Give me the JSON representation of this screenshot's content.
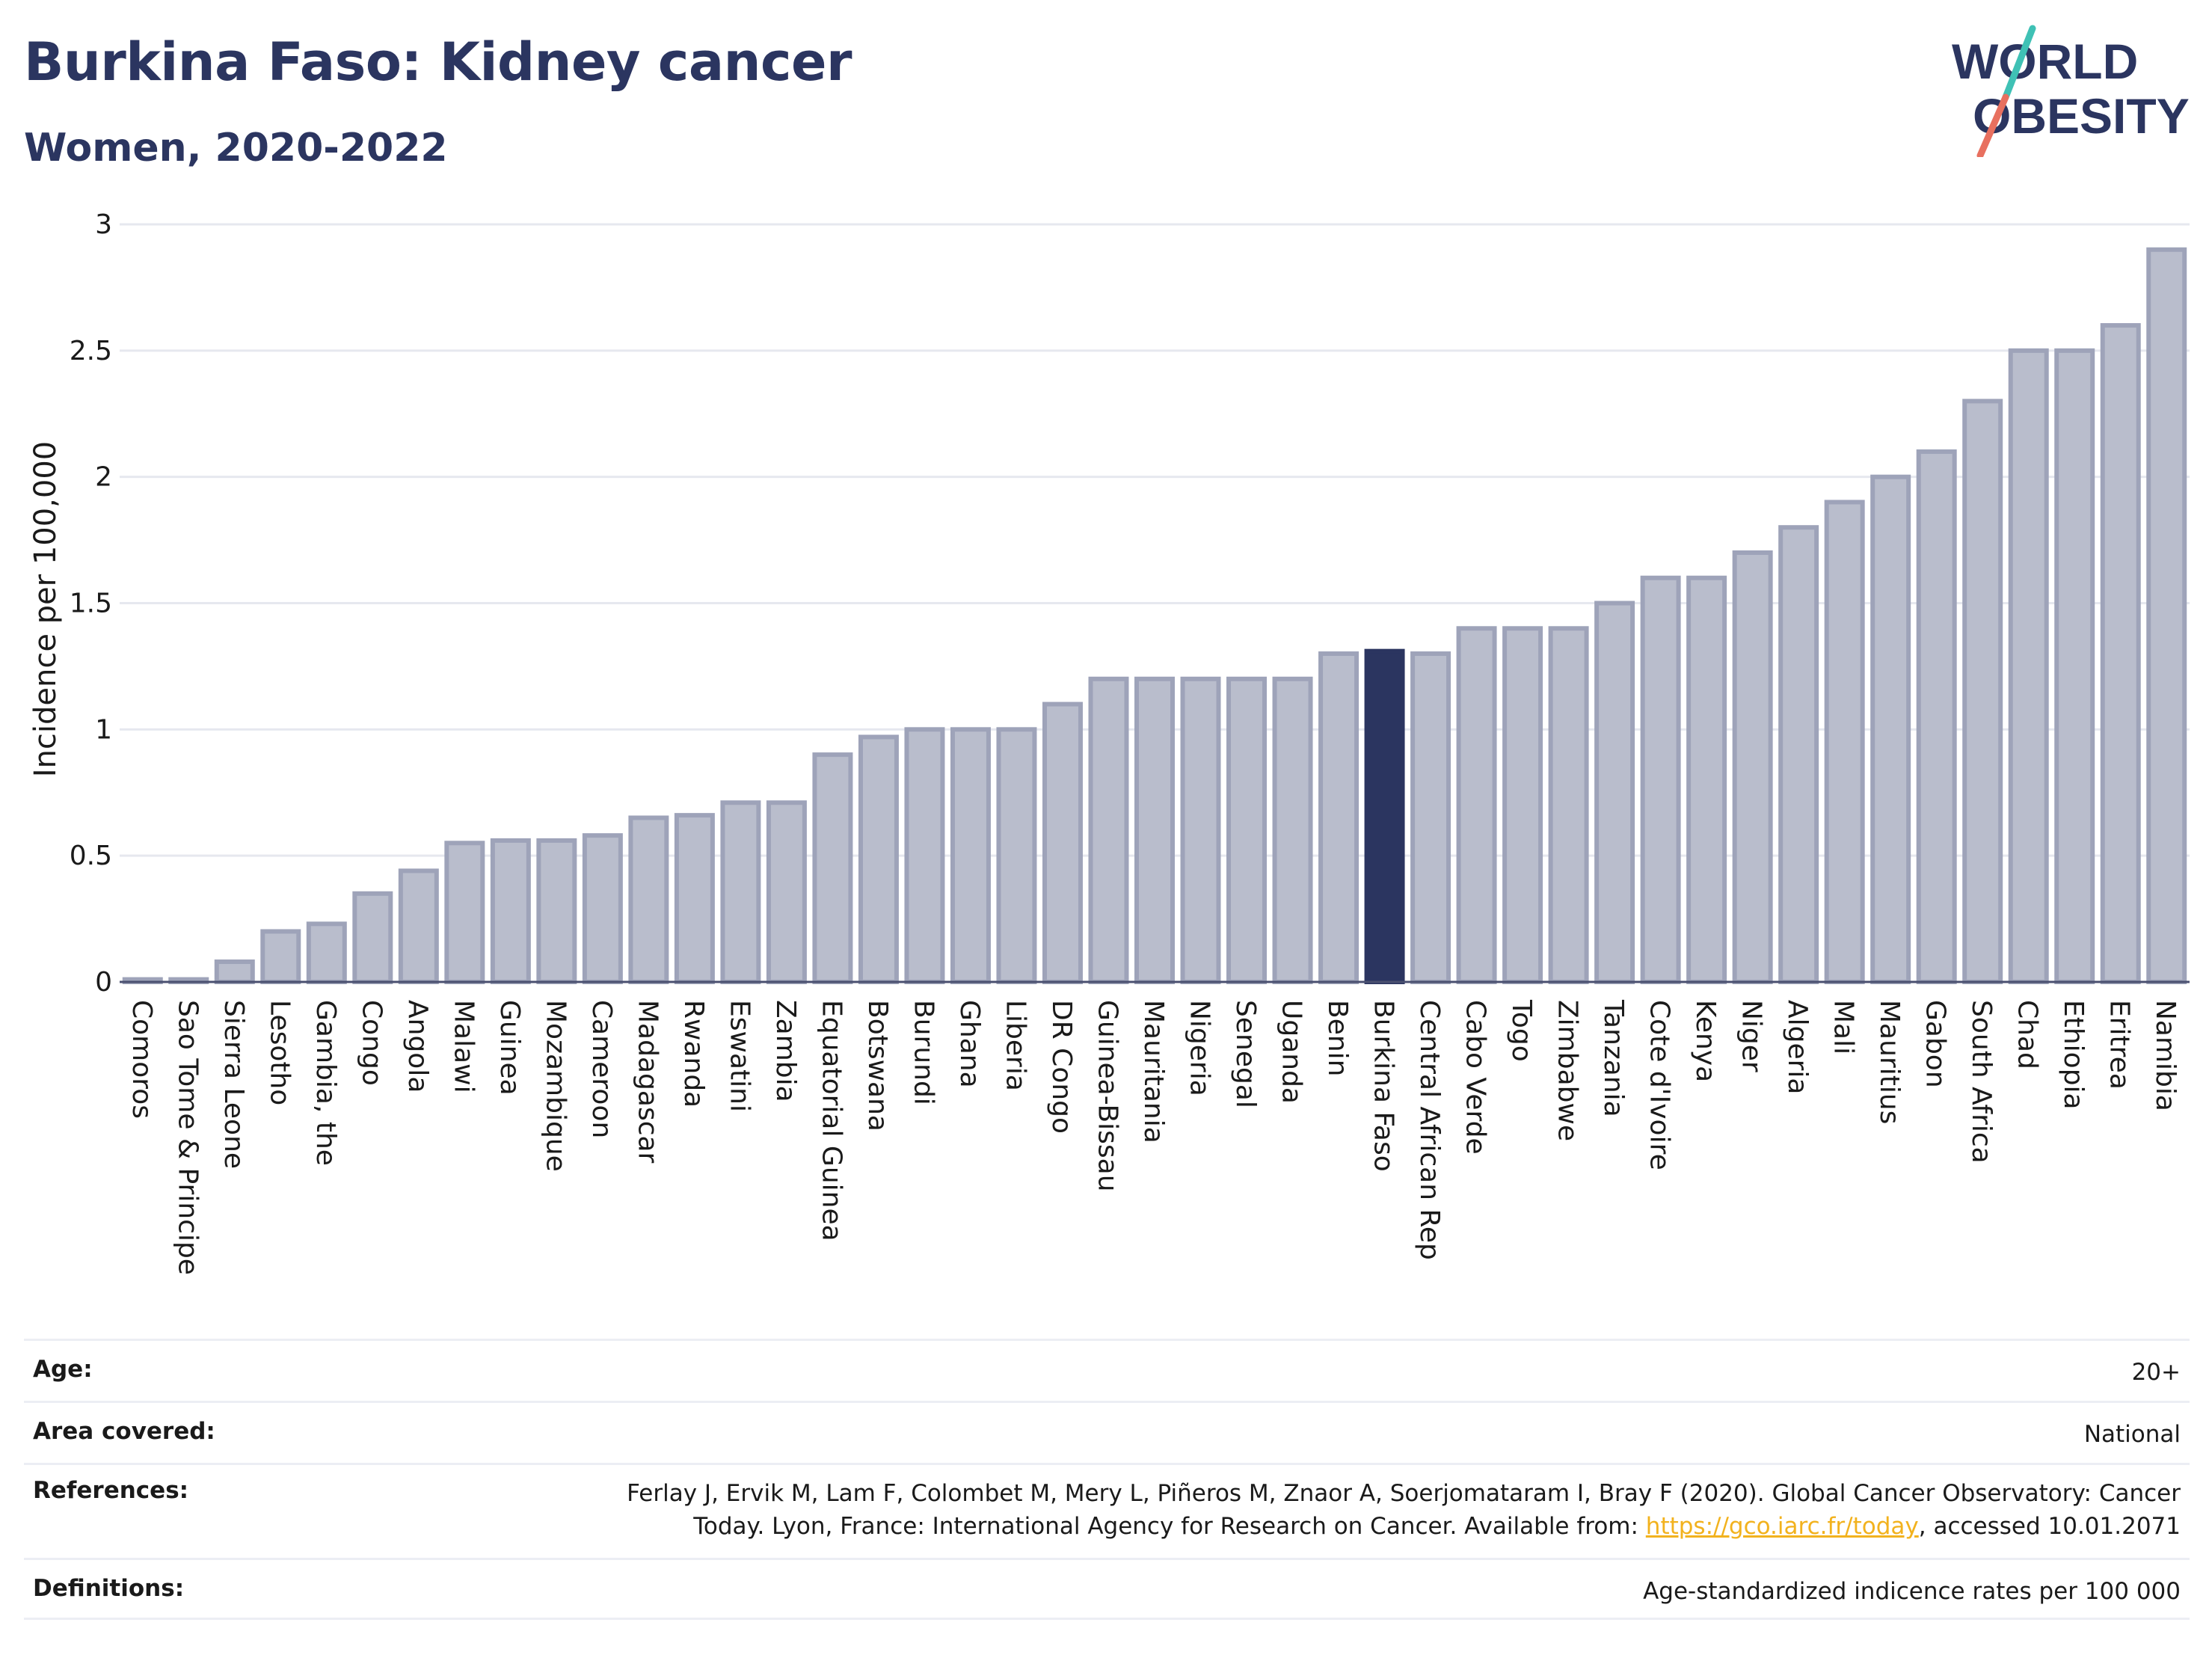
{
  "title": "Burkina Faso: Kidney cancer",
  "subtitle": "Women, 2020-2022",
  "logo": {
    "line1": "WORLD",
    "line2": "OBESITY",
    "accent_colors": [
      "#3fc1b5",
      "#e8705f"
    ]
  },
  "colors": {
    "bar": "#b9bdcc",
    "bar_stroke": "#9ea3b9",
    "highlight": "#2b3560",
    "grid": "#e6e8ef",
    "text": "#2b3560"
  },
  "chart_data": {
    "type": "bar",
    "title": "Burkina Faso: Kidney cancer",
    "subtitle": "Women, 2020-2022",
    "ylabel": "Incidence per 100,000",
    "xlabel": "",
    "ylim": [
      0,
      3
    ],
    "yticks": [
      0,
      0.5,
      1,
      1.5,
      2,
      2.5,
      3
    ],
    "ytick_labels": [
      "0",
      "0.5",
      "1",
      "1.5",
      "2",
      "2.5",
      "3"
    ],
    "grid": true,
    "highlight": "Burkina Faso",
    "categories": [
      "Comoros",
      "Sao Tome & Principe",
      "Sierra Leone",
      "Lesotho",
      "Gambia, the",
      "Congo",
      "Angola",
      "Malawi",
      "Guinea",
      "Mozambique",
      "Cameroon",
      "Madagascar",
      "Rwanda",
      "Eswatini",
      "Zambia",
      "Equatorial Guinea",
      "Botswana",
      "Burundi",
      "Ghana",
      "Liberia",
      "DR Congo",
      "Guinea-Bissau",
      "Mauritania",
      "Nigeria",
      "Senegal",
      "Uganda",
      "Benin",
      "Burkina Faso",
      "Central African Rep",
      "Cabo Verde",
      "Togo",
      "Zimbabwe",
      "Tanzania",
      "Cote d'Ivoire",
      "Kenya",
      "Niger",
      "Algeria",
      "Mali",
      "Mauritius",
      "Gabon",
      "South Africa",
      "Chad",
      "Ethiopia",
      "Eritrea",
      "Namibia"
    ],
    "values": [
      0.01,
      0.01,
      0.08,
      0.2,
      0.23,
      0.35,
      0.44,
      0.55,
      0.56,
      0.56,
      0.58,
      0.65,
      0.66,
      0.71,
      0.71,
      0.9,
      0.97,
      1.0,
      1.0,
      1.0,
      1.1,
      1.2,
      1.2,
      1.2,
      1.2,
      1.2,
      1.3,
      1.31,
      1.3,
      1.4,
      1.4,
      1.4,
      1.5,
      1.6,
      1.6,
      1.7,
      1.8,
      1.9,
      2.0,
      2.1,
      2.3,
      2.5,
      2.5,
      2.6,
      2.9
    ]
  },
  "meta": {
    "age_label": "Age:",
    "age_value": "20+",
    "area_label": "Area covered:",
    "area_value": "National",
    "references_label": "References:",
    "references_text": "Ferlay J, Ervik M, Lam F, Colombet M, Mery L, Piñeros M, Znaor A, Soerjomataram I, Bray F (2020). Global Cancer Observatory: Cancer Today. Lyon, France: International Agency for Research on Cancer. Available from: ",
    "references_link": "https://gco.iarc.fr/today",
    "references_suffix": ", accessed 10.01.2071",
    "definitions_label": "Definitions:",
    "definitions_value": "Age-standardized indicence rates per 100 000"
  }
}
